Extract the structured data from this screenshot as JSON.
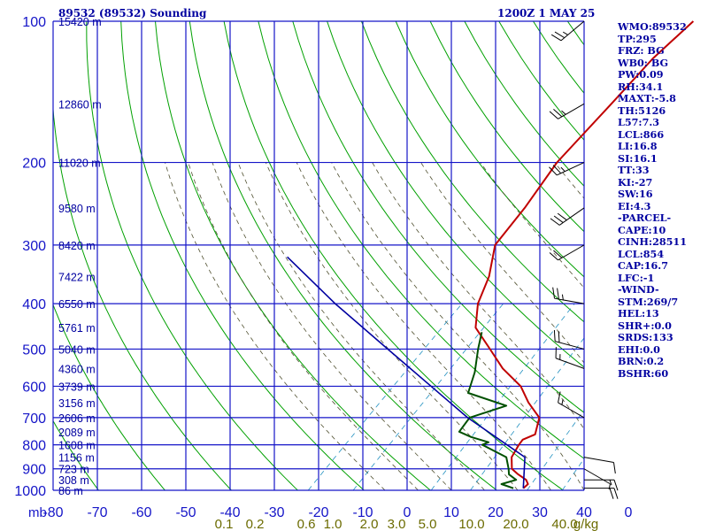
{
  "header": {
    "station": "89532 (89532) Sounding",
    "time": "1200Z  1 MAY 25"
  },
  "indices": [
    "WMO:89532",
    "TP:295",
    "FRZ: BG",
    "WB0: BG",
    "PW:0.09",
    "RH:34.1",
    "MAXT:-5.8",
    "TH:5126",
    "L57:7.3",
    "LCL:866",
    "LI:16.8",
    "SI:16.1",
    "TT:33",
    "KI:-27",
    "SW:16",
    "EI:4.3",
    "-PARCEL-",
    "CAPE:10",
    "CINH:28511",
    "LCL:854",
    "CAP:16.7",
    "LFC:-1",
    "-WIND-",
    "STM:269/7",
    "HEL:13",
    "SHR+:0.0",
    "SRDS:133",
    "EHI:0.0",
    "BRN:0.2",
    "BSHR:60"
  ],
  "colors": {
    "grid": "#1515c8",
    "dry_adiabat": "#00a000",
    "moist_adiabat": "#505030",
    "mixing_ratio": "#2090c0",
    "temperature": "#c00000",
    "dewpoint": "#005000",
    "parcel": "#0000a0",
    "wind": "#000000"
  },
  "chart_data": {
    "type": "line",
    "title": "89532 (89532) Sounding",
    "xlabel": "",
    "ylabel": "mb",
    "y_scale": "log",
    "xlim": [
      -80,
      0
    ],
    "ylim": [
      1000,
      100
    ],
    "grid": true,
    "isobars_mb": [
      100,
      200,
      300,
      400,
      500,
      600,
      700,
      800,
      900,
      1000
    ],
    "isobar_labels": [
      "100",
      "200",
      "300",
      "400",
      "500",
      "600",
      "700",
      "800",
      "900",
      "1000"
    ],
    "y_unit_label": "mb",
    "temp_ticks": [
      "-80",
      "-70",
      "-60",
      "-50",
      "-40",
      "-30",
      "-20",
      "-10",
      "0",
      "10",
      "20",
      "30",
      "40",
      "0"
    ],
    "mixing_ratio_labels": [
      "0.1",
      "0.2",
      "0.6",
      "1.0",
      "2.0",
      "3.0",
      "5.0",
      "10.0",
      "20.0",
      "40.0",
      "g/kg"
    ],
    "height_labels": [
      {
        "p": 100,
        "label": "15420 m"
      },
      {
        "p": 150,
        "label": "12860 m"
      },
      {
        "p": 200,
        "label": "11020 m"
      },
      {
        "p": 250,
        "label": "9580 m"
      },
      {
        "p": 300,
        "label": "8420 m"
      },
      {
        "p": 350,
        "label": "7422 m"
      },
      {
        "p": 400,
        "label": "6550 m"
      },
      {
        "p": 450,
        "label": "5761 m"
      },
      {
        "p": 500,
        "label": "5040 m"
      },
      {
        "p": 550,
        "label": "4360 m"
      },
      {
        "p": 600,
        "label": "3739 m"
      },
      {
        "p": 650,
        "label": "3156 m"
      },
      {
        "p": 700,
        "label": "2606 m"
      },
      {
        "p": 750,
        "label": "2089 m"
      },
      {
        "p": 800,
        "label": "1608 m"
      },
      {
        "p": 850,
        "label": "1156 m"
      },
      {
        "p": 900,
        "label": "723 m"
      },
      {
        "p": 950,
        "label": "308 m"
      },
      {
        "p": 1000,
        "label": "86 m"
      }
    ],
    "series": [
      {
        "kind": "temperature",
        "points": [
          [
            990,
            -9.5
          ],
          [
            970,
            -9.5
          ],
          [
            950,
            -10.5
          ],
          [
            925,
            -12.6
          ],
          [
            900,
            -14.5
          ],
          [
            850,
            -16.5
          ],
          [
            800,
            -17.5
          ],
          [
            780,
            -17.8
          ],
          [
            760,
            -16.8
          ],
          [
            700,
            -19
          ],
          [
            650,
            -23.2
          ],
          [
            600,
            -27.1
          ],
          [
            550,
            -32.8
          ],
          [
            500,
            -38
          ],
          [
            450,
            -43.8
          ],
          [
            400,
            -47.5
          ],
          [
            350,
            -50.4
          ],
          [
            300,
            -54.8
          ],
          [
            250,
            -56.6
          ],
          [
            200,
            -59.4
          ],
          [
            150,
            -61.1
          ],
          [
            120,
            -62.5
          ],
          [
            100,
            -62.7
          ]
        ]
      },
      {
        "kind": "dewpoint",
        "points": [
          [
            990,
            -11
          ],
          [
            970,
            -13.5
          ],
          [
            950,
            -12
          ],
          [
            925,
            -14
          ],
          [
            900,
            -15
          ],
          [
            850,
            -17.3
          ],
          [
            800,
            -23
          ],
          [
            790,
            -22.5
          ],
          [
            770,
            -26
          ],
          [
            750,
            -28.7
          ],
          [
            700,
            -29.5
          ],
          [
            660,
            -26
          ],
          [
            620,
            -33.9
          ],
          [
            560,
            -36.4
          ],
          [
            500,
            -39.8
          ],
          [
            460,
            -42.1
          ]
        ]
      },
      {
        "kind": "parcel",
        "points": [
          [
            990,
            -9.5
          ],
          [
            850,
            -14.5
          ],
          [
            700,
            -29.8
          ],
          [
            500,
            -53.4
          ],
          [
            400,
            -69
          ],
          [
            318,
            -84.1
          ]
        ]
      }
    ],
    "wind_barbs": [
      {
        "p": 100,
        "dir": 230,
        "spd": 25
      },
      {
        "p": 150,
        "dir": 240,
        "spd": 25
      },
      {
        "p": 200,
        "dir": 245,
        "spd": 25
      },
      {
        "p": 250,
        "dir": 235,
        "spd": 30
      },
      {
        "p": 300,
        "dir": 240,
        "spd": 20
      },
      {
        "p": 400,
        "dir": 280,
        "spd": 25
      },
      {
        "p": 500,
        "dir": 285,
        "spd": 20
      },
      {
        "p": 550,
        "dir": 290,
        "spd": 15
      },
      {
        "p": 700,
        "dir": 300,
        "spd": 15
      },
      {
        "p": 850,
        "dir": 100,
        "spd": 10
      },
      {
        "p": 900,
        "dir": 120,
        "spd": 5
      },
      {
        "p": 950,
        "dir": 90,
        "spd": 15
      },
      {
        "p": 990,
        "dir": 90,
        "spd": 20
      }
    ]
  }
}
